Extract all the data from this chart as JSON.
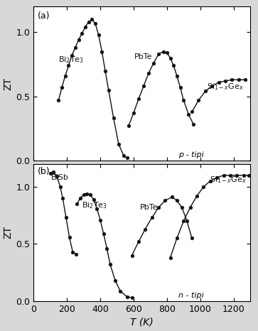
{
  "xlabel": "T (K)",
  "ylabel": "ZT",
  "xlim": [
    0,
    1300
  ],
  "ylim_a": [
    0,
    1.2
  ],
  "ylim_b": [
    0,
    1.2
  ],
  "xticks": [
    0,
    200,
    400,
    600,
    800,
    1000,
    1200
  ],
  "yticks": [
    0,
    0.5,
    1
  ],
  "background": "#f0f0f0",
  "panel_a_label": "(a)",
  "panel_b_label": "(b)",
  "panel_a_note": "p - tipi",
  "panel_b_note": "n - tipi",
  "p_Bi2Te3_T": [
    150,
    170,
    190,
    210,
    230,
    250,
    270,
    290,
    310,
    330,
    350,
    370,
    390,
    410,
    430,
    450,
    480,
    510,
    540,
    560
  ],
  "p_Bi2Te3_ZT": [
    0.47,
    0.57,
    0.66,
    0.74,
    0.82,
    0.88,
    0.94,
    0.99,
    1.04,
    1.08,
    1.1,
    1.07,
    0.98,
    0.85,
    0.7,
    0.55,
    0.33,
    0.13,
    0.04,
    0.02
  ],
  "p_PbTe_T": [
    570,
    600,
    630,
    660,
    690,
    720,
    750,
    780,
    800,
    820,
    840,
    860,
    880,
    900,
    930,
    960
  ],
  "p_PbTe_ZT": [
    0.27,
    0.37,
    0.48,
    0.58,
    0.68,
    0.76,
    0.83,
    0.85,
    0.84,
    0.8,
    0.74,
    0.66,
    0.57,
    0.47,
    0.36,
    0.28
  ],
  "p_SiGe_T": [
    950,
    990,
    1030,
    1070,
    1110,
    1150,
    1190,
    1230,
    1270
  ],
  "p_SiGe_ZT": [
    0.38,
    0.47,
    0.54,
    0.58,
    0.61,
    0.62,
    0.63,
    0.63,
    0.63
  ],
  "n_BiSb_T": [
    100,
    120,
    140,
    160,
    175,
    195,
    215,
    235,
    255
  ],
  "n_BiSb_ZT": [
    1.12,
    1.13,
    1.09,
    1.0,
    0.9,
    0.73,
    0.56,
    0.43,
    0.41
  ],
  "n_Bi2Te3_T": [
    260,
    280,
    300,
    320,
    340,
    360,
    380,
    400,
    420,
    440,
    460,
    490,
    520,
    560,
    590
  ],
  "n_Bi2Te3_ZT": [
    0.85,
    0.9,
    0.93,
    0.94,
    0.93,
    0.89,
    0.81,
    0.71,
    0.59,
    0.46,
    0.32,
    0.18,
    0.09,
    0.04,
    0.03
  ],
  "n_PbTe_T": [
    590,
    630,
    670,
    710,
    750,
    790,
    830,
    860,
    890,
    920,
    950
  ],
  "n_PbTe_ZT": [
    0.4,
    0.52,
    0.63,
    0.73,
    0.82,
    0.88,
    0.91,
    0.88,
    0.82,
    0.7,
    0.55
  ],
  "n_SiGe_T": [
    820,
    860,
    900,
    940,
    980,
    1020,
    1060,
    1100,
    1140,
    1180,
    1220,
    1260,
    1290
  ],
  "n_SiGe_ZT": [
    0.38,
    0.55,
    0.7,
    0.82,
    0.92,
    1.0,
    1.05,
    1.08,
    1.1,
    1.1,
    1.1,
    1.1,
    1.1
  ],
  "marker": "o",
  "markersize": 3.5,
  "linewidth": 1.0,
  "color": "#111111"
}
